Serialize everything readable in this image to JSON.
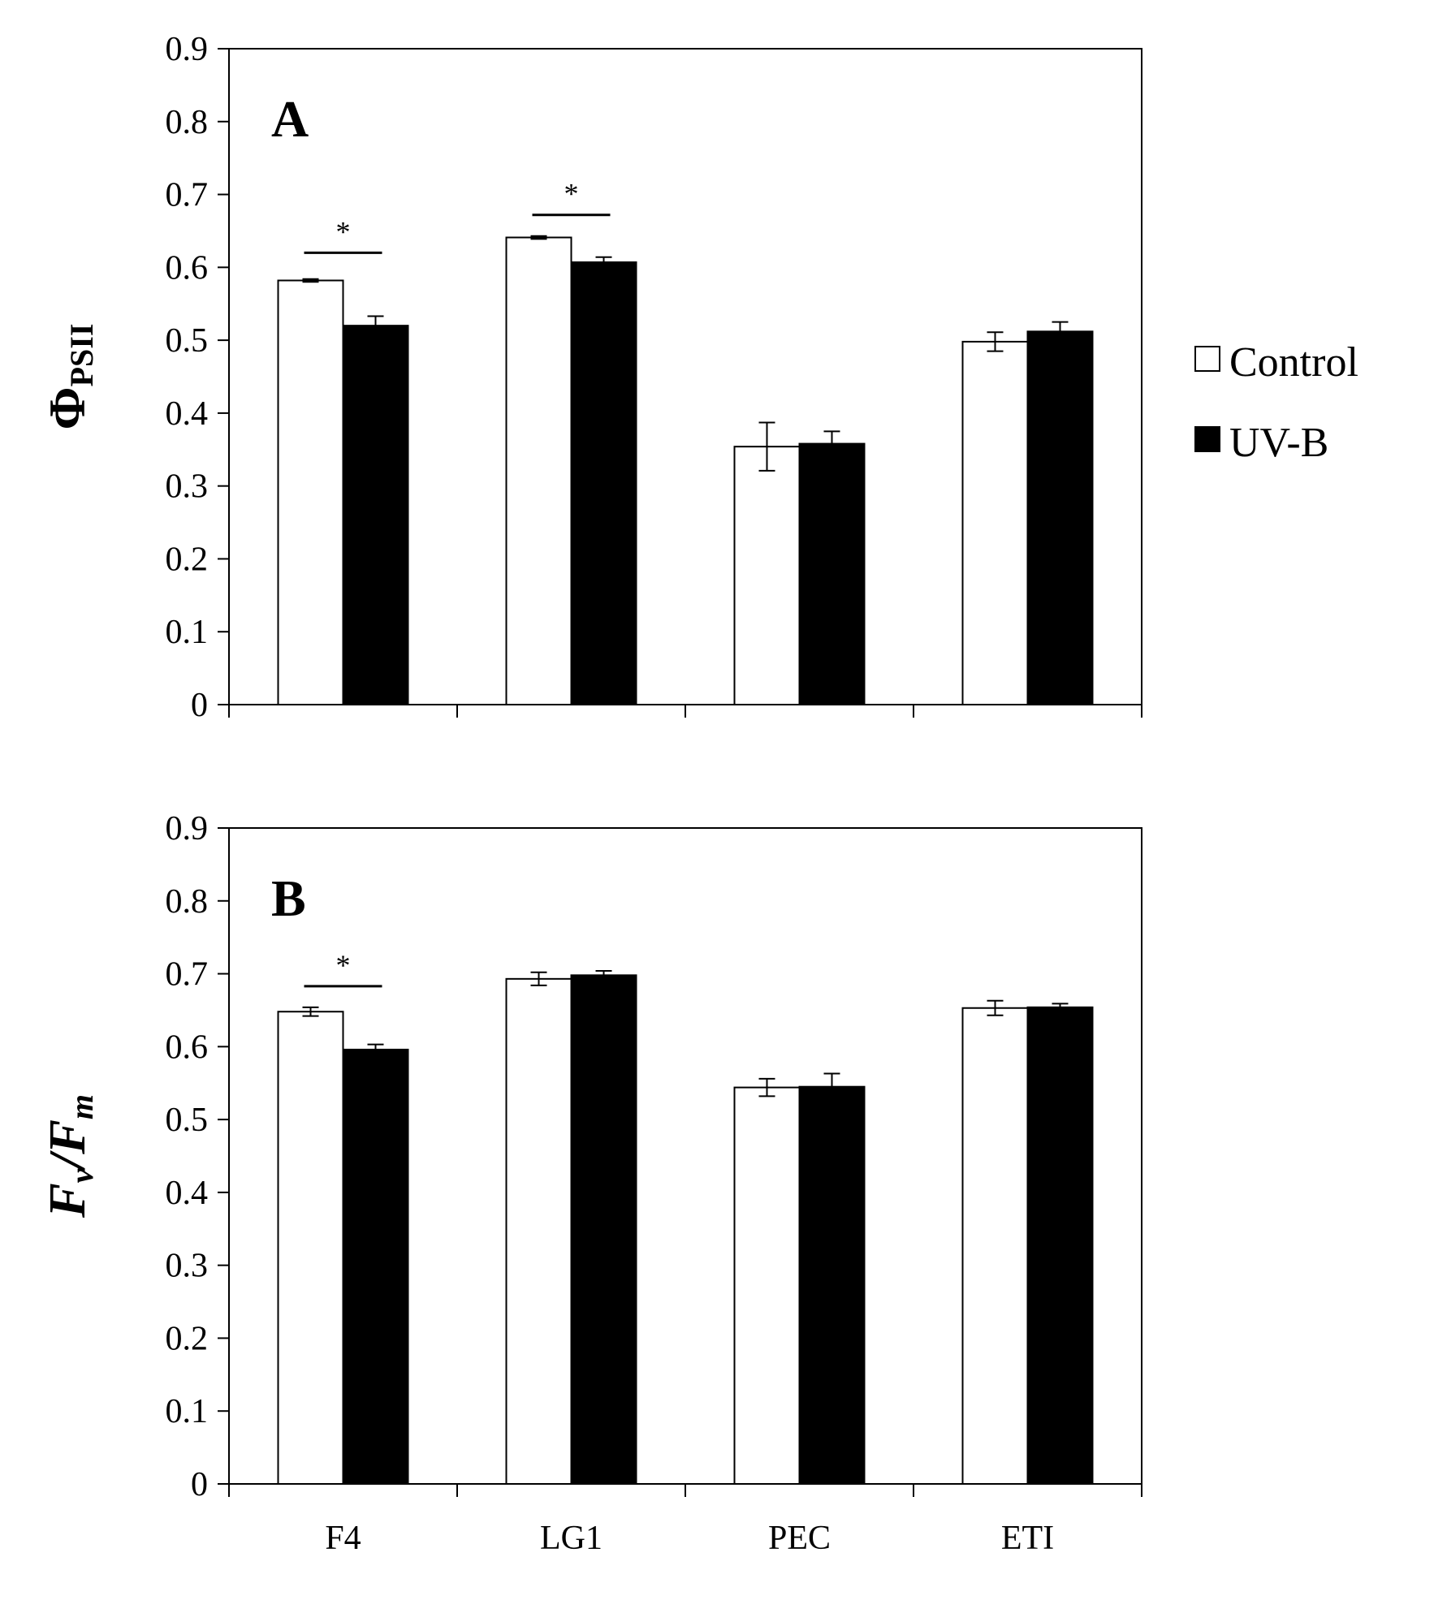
{
  "chart_data": [
    {
      "type": "bar",
      "panel": "A",
      "ylabel_main": "Φ",
      "ylabel_sub": "PSII",
      "ylim": [
        0,
        0.9
      ],
      "yticks": [
        "0",
        "0.1",
        "0.2",
        "0.3",
        "0.4",
        "0.5",
        "0.6",
        "0.7",
        "0.8",
        "0.9"
      ],
      "categories": [
        "F4",
        "LG1",
        "PEC",
        "ETI"
      ],
      "show_category_labels": false,
      "series": [
        {
          "name": "Control",
          "values": [
            0.582,
            0.641,
            0.354,
            0.498
          ],
          "errors": [
            0.002,
            0.002,
            0.033,
            0.013
          ]
        },
        {
          "name": "UV-B",
          "values": [
            0.52,
            0.607,
            0.358,
            0.512
          ],
          "errors": [
            0.013,
            0.007,
            0.017,
            0.013
          ]
        }
      ],
      "significance": [
        {
          "category": "F4",
          "label": "*",
          "bar_y": 0.62
        },
        {
          "category": "LG1",
          "label": "*",
          "bar_y": 0.672
        }
      ]
    },
    {
      "type": "bar",
      "panel": "B",
      "ylabel_main": "F",
      "ylabel_sub": "v",
      "ylabel_sep": "/",
      "ylabel_main2": "F",
      "ylabel_sub2": "m",
      "ylim": [
        0,
        0.9
      ],
      "yticks": [
        "0",
        "0.1",
        "0.2",
        "0.3",
        "0.4",
        "0.5",
        "0.6",
        "0.7",
        "0.8",
        "0.9"
      ],
      "categories": [
        "F4",
        "LG1",
        "PEC",
        "ETI"
      ],
      "show_category_labels": true,
      "series": [
        {
          "name": "Control",
          "values": [
            0.648,
            0.693,
            0.544,
            0.653
          ],
          "errors": [
            0.006,
            0.009,
            0.012,
            0.01
          ]
        },
        {
          "name": "UV-B",
          "values": [
            0.596,
            0.698,
            0.545,
            0.654
          ],
          "errors": [
            0.007,
            0.006,
            0.018,
            0.005
          ]
        }
      ],
      "significance": [
        {
          "category": "F4",
          "label": "*",
          "bar_y": 0.683
        }
      ]
    }
  ],
  "legend": [
    {
      "label": "Control",
      "color": "#ffffff"
    },
    {
      "label": "UV-B",
      "color": "#000000"
    }
  ]
}
